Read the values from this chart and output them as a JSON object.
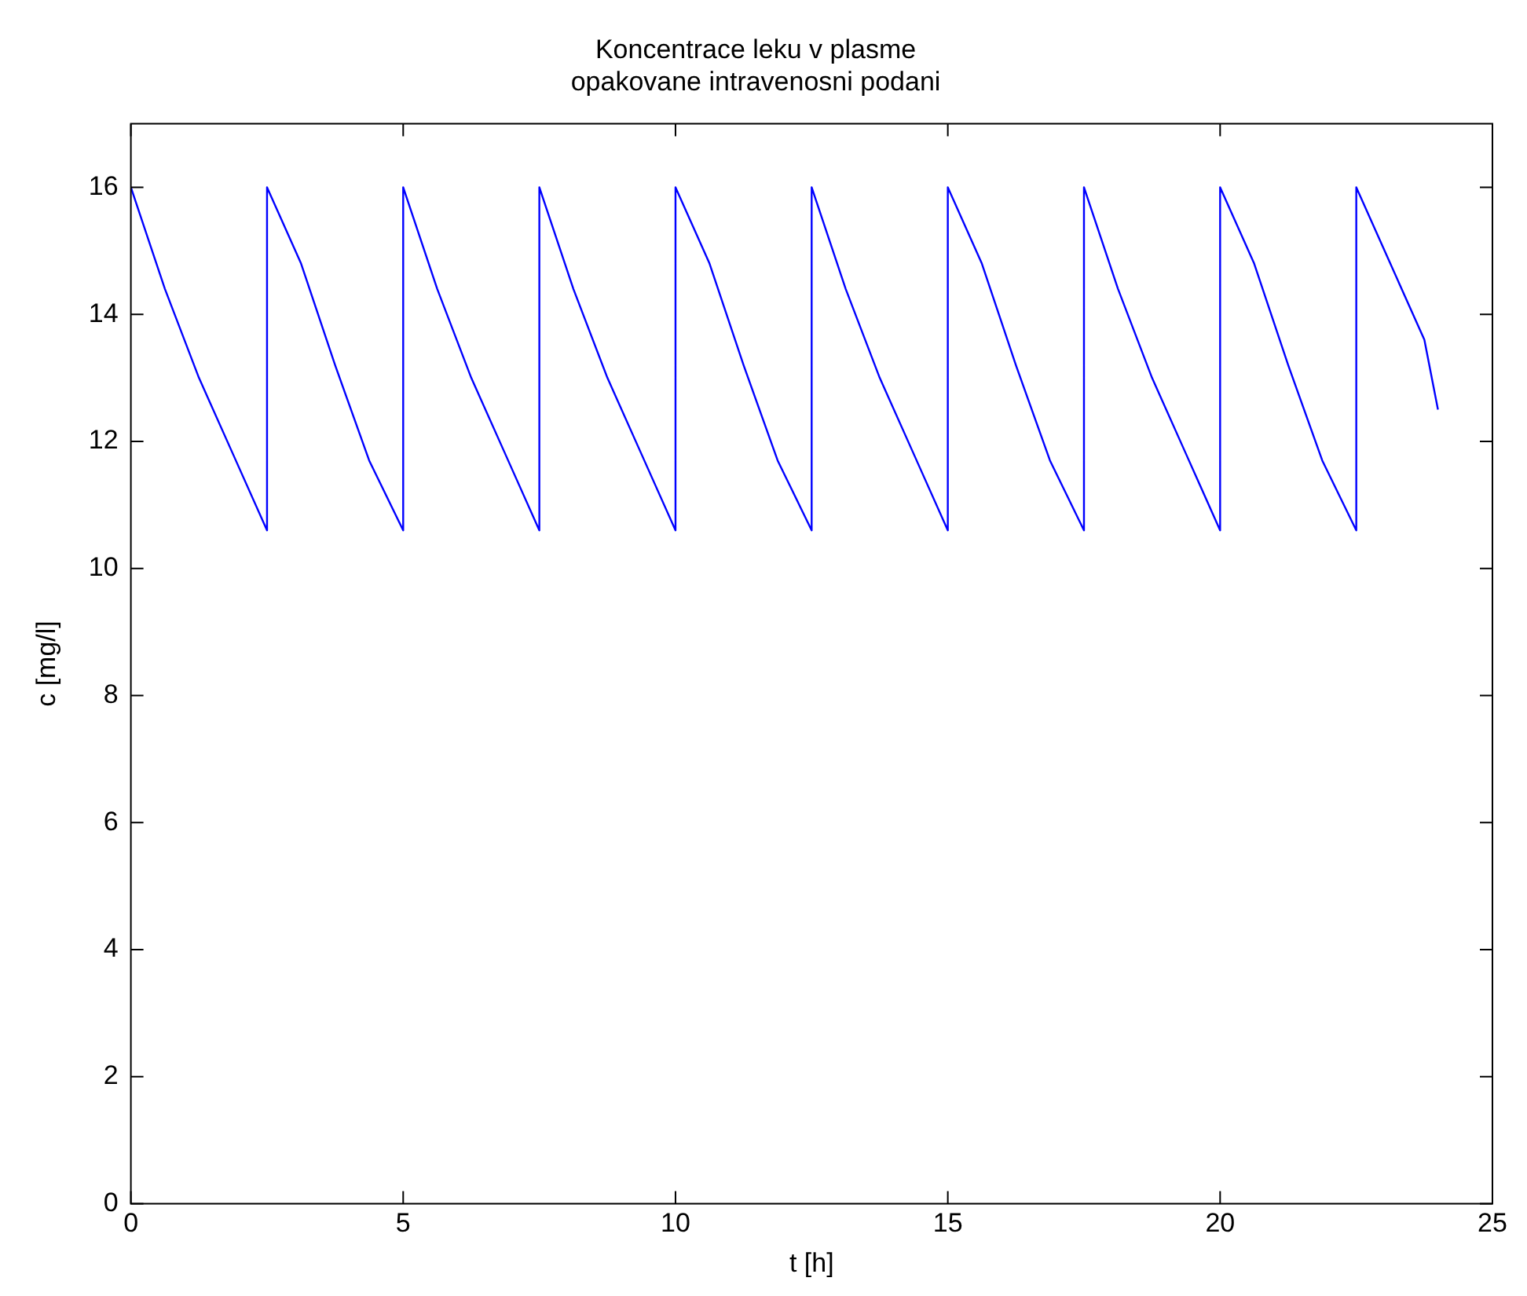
{
  "chart_data": {
    "type": "line",
    "title": "Koncentrace leku v plasme\nopakovane intravenosni podani",
    "xlabel": "t [h]",
    "ylabel": "c [mg/l]",
    "series": [
      {
        "color": "#0000ff",
        "x": [
          0,
          0.625,
          1.25,
          1.875,
          2.5,
          2.5,
          3.125,
          3.75,
          4.375,
          5,
          5,
          5.625,
          6.25,
          6.875,
          7.5,
          7.5,
          8.125,
          8.75,
          9.375,
          10,
          10,
          10.625,
          11.25,
          11.875,
          12.5,
          12.5,
          13.125,
          13.75,
          14.375,
          15,
          15,
          15.625,
          16.25,
          16.875,
          17.5,
          17.5,
          18.125,
          18.75,
          19.375,
          20,
          20,
          20.625,
          21.25,
          21.875,
          22.5,
          22.5,
          23.125,
          23.75,
          24
        ],
        "values": [
          16,
          14.4,
          13,
          11.8,
          10.6,
          16,
          14.8,
          13.2,
          11.7,
          10.6,
          16,
          14.4,
          13,
          11.8,
          10.6,
          16,
          14.4,
          13,
          11.8,
          10.6,
          16,
          14.8,
          13.2,
          11.7,
          10.6,
          16,
          14.4,
          13,
          11.8,
          10.6,
          16,
          14.8,
          13.2,
          11.7,
          10.6,
          16,
          14.4,
          13,
          11.8,
          10.6,
          16,
          14.8,
          13.2,
          11.7,
          10.6,
          16,
          14.8,
          13.6,
          12.5
        ]
      }
    ],
    "xlim": [
      0,
      25
    ],
    "xticks": [
      0,
      5,
      10,
      15,
      20,
      25
    ],
    "ylim": [
      0,
      17
    ],
    "yticks": [
      0,
      2,
      4,
      6,
      8,
      10,
      12,
      14,
      16
    ],
    "grid": false,
    "marker": "none",
    "line_style": "solid"
  }
}
